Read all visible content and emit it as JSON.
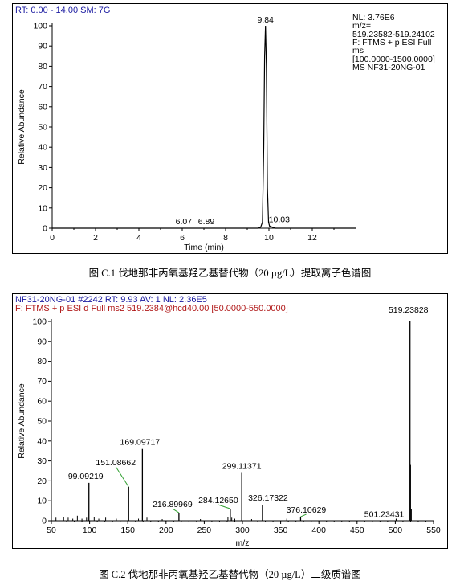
{
  "chart1": {
    "header_blue": "RT: 0.00 - 14.00   SM: 7G",
    "info_lines": [
      "NL: 3.76E6",
      "m/z=",
      "519.23582-519.24102",
      "F: FTMS + p ESI Full",
      "ms",
      "[100.0000-1500.0000]",
      " MS NF31-20NG-01"
    ],
    "caption": "图 C.1  伐地那非丙氧基羟乙基替代物（20 µg/L）提取离子色谱图"
  },
  "chart2": {
    "header_blue": "NF31-20NG-01 #2242   RT: 9.93   AV: 1   NL: 2.36E5",
    "header_red": "F: FTMS + p ESI d Full ms2 519.2384@hcd40.00 [50.0000-550.0000]",
    "caption": "图 C.2  伐地那非丙氧基羟乙基替代物（20 µg/L）二级质谱图"
  },
  "colors": {
    "label_line": "#2e9e2e",
    "header_blue": "#1a1aa0",
    "header_red": "#b01818",
    "trace": "#000000"
  },
  "chart_data": [
    {
      "type": "line",
      "title": "",
      "xlabel": "Time (min)",
      "ylabel": "Relative Abundance",
      "xlim": [
        0,
        14
      ],
      "ylim": [
        0,
        100
      ],
      "xticks": [
        0,
        2,
        4,
        6,
        8,
        10,
        12
      ],
      "yticks": [
        0,
        10,
        20,
        30,
        40,
        50,
        60,
        70,
        80,
        90,
        100
      ],
      "series": [
        {
          "x": [
            0,
            9.5,
            9.62,
            9.7,
            9.76,
            9.8,
            9.84,
            9.88,
            9.93,
            9.98,
            10.03,
            10.3,
            14.0
          ],
          "y": [
            0,
            0,
            0.5,
            3,
            40,
            85,
            100,
            80,
            20,
            3,
            1,
            0,
            0
          ]
        }
      ],
      "annotations": [
        {
          "label": "9.84",
          "x": 9.84,
          "y": 100
        },
        {
          "label": "6.07",
          "x": 6.07,
          "y": 0
        },
        {
          "label": "6.89",
          "x": 6.89,
          "y": 0
        },
        {
          "label": "10.03",
          "x": 10.03,
          "y": 1
        }
      ],
      "grid": false
    },
    {
      "type": "bar",
      "title": "",
      "xlabel": "m/z",
      "ylabel": "Relative Abundance",
      "xlim": [
        50,
        550
      ],
      "ylim": [
        0,
        100
      ],
      "xticks": [
        50,
        100,
        150,
        200,
        250,
        300,
        350,
        400,
        450,
        500,
        550
      ],
      "yticks": [
        0,
        10,
        20,
        30,
        40,
        50,
        60,
        70,
        80,
        90,
        100
      ],
      "peaks": [
        {
          "mz": 519.23828,
          "intensity": 100,
          "label": "519.23828"
        },
        {
          "mz": 169.09717,
          "intensity": 36,
          "label": "169.09717"
        },
        {
          "mz": 151.08662,
          "intensity": 17,
          "label": "151.08662"
        },
        {
          "mz": 99.09219,
          "intensity": 19,
          "label": "99.09219"
        },
        {
          "mz": 299.11371,
          "intensity": 24,
          "label": "299.11371"
        },
        {
          "mz": 326.17322,
          "intensity": 8,
          "label": "326.17322"
        },
        {
          "mz": 284.1265,
          "intensity": 6,
          "label": "284.12650"
        },
        {
          "mz": 216.89969,
          "intensity": 4,
          "label": "216.89969"
        },
        {
          "mz": 376.10629,
          "intensity": 2,
          "label": "376.10629"
        },
        {
          "mz": 501.23431,
          "intensity": 1,
          "label": "501.23431"
        }
      ],
      "minor_peaks": [
        {
          "mz": 56,
          "intensity": 1.5
        },
        {
          "mz": 60,
          "intensity": 1
        },
        {
          "mz": 66,
          "intensity": 2
        },
        {
          "mz": 72,
          "intensity": 1.5
        },
        {
          "mz": 78,
          "intensity": 1
        },
        {
          "mz": 84,
          "intensity": 2.5
        },
        {
          "mz": 90,
          "intensity": 1
        },
        {
          "mz": 96,
          "intensity": 1.5
        },
        {
          "mz": 106,
          "intensity": 2
        },
        {
          "mz": 112,
          "intensity": 1
        },
        {
          "mz": 121,
          "intensity": 1.5
        },
        {
          "mz": 135,
          "intensity": 1
        },
        {
          "mz": 164,
          "intensity": 1
        },
        {
          "mz": 175,
          "intensity": 1.5
        },
        {
          "mz": 195,
          "intensity": 0.8
        },
        {
          "mz": 245,
          "intensity": 0.8
        },
        {
          "mz": 281,
          "intensity": 2
        },
        {
          "mz": 286,
          "intensity": 1.5
        },
        {
          "mz": 290,
          "intensity": 1
        },
        {
          "mz": 312,
          "intensity": 0.8
        },
        {
          "mz": 358,
          "intensity": 1
        },
        {
          "mz": 518,
          "intensity": 3
        },
        {
          "mz": 520,
          "intensity": 28
        },
        {
          "mz": 521,
          "intensity": 6
        }
      ],
      "grid": false
    }
  ]
}
